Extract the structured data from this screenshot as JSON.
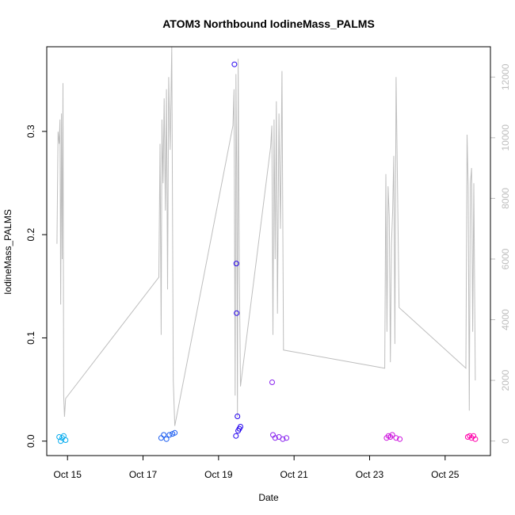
{
  "chart_data": {
    "type": "scatter",
    "title": "ATOM3 Northbound IodineMass_PALMS",
    "xlabel": "Date",
    "ylabel": "IodineMass_PALMS",
    "x_ticks": [
      "Oct 15",
      "Oct 17",
      "Oct 19",
      "Oct 21",
      "Oct 23",
      "Oct 25"
    ],
    "x_tick_days": [
      15,
      17,
      19,
      21,
      23,
      25
    ],
    "xlim_days": [
      14.45,
      26.2
    ],
    "ylim": [
      -0.014,
      0.382
    ],
    "y_ticks": [
      0.0,
      0.1,
      0.2,
      0.3
    ],
    "y2_label": "",
    "y2lim": [
      -480,
      13000
    ],
    "y2_ticks": [
      0,
      2000,
      4000,
      6000,
      8000,
      10000,
      12000
    ],
    "grid": false,
    "line_color": "#bebebe",
    "series": [
      {
        "color": "#00aaee",
        "x_days": [
          14.78,
          14.82,
          14.86,
          14.9,
          14.95
        ],
        "y": [
          0.004,
          0.0,
          0.003,
          0.005,
          0.001
        ]
      },
      {
        "color": "#1a5cf0",
        "x_days": [
          17.48,
          17.55,
          17.62,
          17.7,
          17.78,
          17.84
        ],
        "y": [
          0.003,
          0.006,
          0.002,
          0.006,
          0.007,
          0.008
        ]
      },
      {
        "color": "#2200ee",
        "x_days": [
          19.42,
          19.46,
          19.47,
          19.48,
          19.5,
          19.52,
          19.55,
          19.58
        ],
        "y": [
          0.365,
          0.005,
          0.172,
          0.124,
          0.024,
          0.01,
          0.012,
          0.014
        ]
      },
      {
        "color": "#8822ee",
        "x_days": [
          20.42,
          20.44,
          20.5,
          20.6,
          20.7,
          20.8
        ],
        "y": [
          0.057,
          0.006,
          0.003,
          0.004,
          0.002,
          0.003
        ]
      },
      {
        "color": "#cc11dd",
        "x_days": [
          23.45,
          23.5,
          23.55,
          23.6,
          23.7,
          23.8
        ],
        "y": [
          0.003,
          0.005,
          0.004,
          0.006,
          0.003,
          0.002
        ]
      },
      {
        "color": "#ff00aa",
        "x_days": [
          25.6,
          25.65,
          25.7,
          25.75,
          25.8
        ],
        "y": [
          0.004,
          0.005,
          0.003,
          0.005,
          0.002
        ]
      }
    ],
    "secondary_series": {
      "x_days": [
        14.72,
        14.75,
        14.78,
        14.8,
        14.82,
        14.84,
        14.86,
        14.88,
        14.9,
        14.92,
        14.95,
        17.42,
        17.45,
        17.48,
        17.5,
        17.53,
        17.56,
        17.59,
        17.62,
        17.65,
        17.68,
        17.72,
        17.76,
        17.8,
        17.84,
        19.38,
        19.41,
        19.44,
        19.46,
        19.48,
        19.5,
        19.52,
        19.55,
        19.58,
        20.38,
        20.41,
        20.44,
        20.47,
        20.5,
        20.53,
        20.56,
        20.6,
        20.64,
        20.68,
        20.72,
        23.4,
        23.43,
        23.46,
        23.49,
        23.52,
        23.55,
        23.58,
        23.61,
        23.64,
        23.67,
        23.7,
        23.74,
        23.78,
        25.55,
        25.58,
        25.61,
        25.64,
        25.67,
        25.7,
        25.73,
        25.76,
        25.8
      ],
      "y": [
        6500,
        10200,
        9800,
        10600,
        4500,
        10800,
        6000,
        11800,
        1500,
        800,
        1400,
        5400,
        9800,
        3500,
        10600,
        8500,
        11300,
        7600,
        11600,
        5000,
        12000,
        9600,
        13000,
        2000,
        500,
        10400,
        11600,
        1500,
        12100,
        9000,
        800,
        12600,
        5500,
        1800,
        9700,
        10400,
        3500,
        10600,
        6000,
        11200,
        4200,
        10800,
        7000,
        12200,
        3000,
        2400,
        8800,
        3600,
        8400,
        7400,
        2600,
        6500,
        7600,
        9400,
        3200,
        12000,
        8200,
        4400,
        2400,
        10100,
        8400,
        1000,
        8500,
        9000,
        3600,
        8500,
        2000
      ]
    }
  }
}
